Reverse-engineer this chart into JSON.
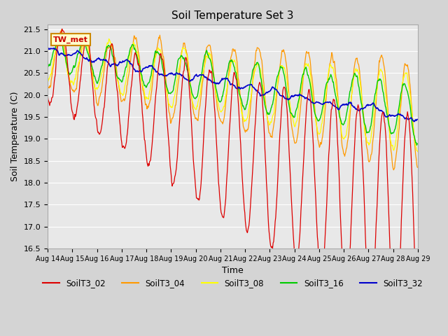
{
  "title": "Soil Temperature Set 3",
  "xlabel": "Time",
  "ylabel": "Soil Temperature (C)",
  "yticks": [
    16.5,
    17.0,
    17.5,
    18.0,
    18.5,
    19.0,
    19.5,
    20.0,
    20.5,
    21.0,
    21.5
  ],
  "ylim": [
    16.5,
    21.6
  ],
  "xtick_labels": [
    "Aug 14",
    "Aug 15",
    "Aug 16",
    "Aug 17",
    "Aug 18",
    "Aug 19",
    "Aug 20",
    "Aug 21",
    "Aug 22",
    "Aug 23",
    "Aug 24",
    "Aug 25",
    "Aug 26",
    "Aug 27",
    "Aug 28",
    "Aug 29"
  ],
  "bg_color": "#e8e8e8",
  "series_colors": {
    "SoilT3_02": "#dd0000",
    "SoilT3_04": "#ff9900",
    "SoilT3_08": "#ffff00",
    "SoilT3_16": "#00cc00",
    "SoilT3_32": "#0000cc"
  },
  "annotation_text": "TW_met",
  "annotation_box_color": "#ffffcc",
  "annotation_border_color": "#cc8800",
  "fig_facecolor": "#d4d4d4"
}
